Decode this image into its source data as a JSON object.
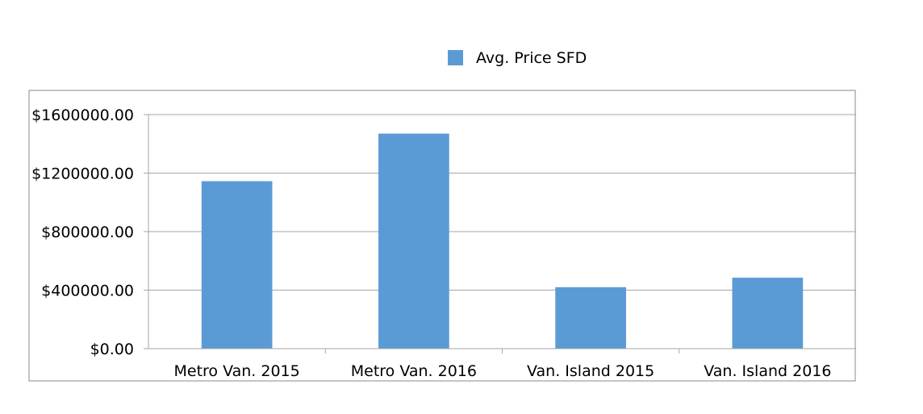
{
  "chart_data": {
    "type": "bar",
    "categories": [
      "Metro Van. 2015",
      "Metro Van. 2016",
      "Van. Island 2015",
      "Van. Island 2016"
    ],
    "series": [
      {
        "name": "Avg. Price SFD",
        "values": [
          1145000,
          1470000,
          420000,
          485000
        ],
        "color": "#5b9bd5"
      }
    ],
    "ylim": [
      0,
      1600000
    ],
    "yticks": [
      0,
      400000,
      800000,
      1200000,
      1600000
    ],
    "ytick_labels": [
      "$0.00",
      "$400000.00",
      "$800000.00",
      "$1200000.00",
      "$1600000.00"
    ],
    "legend_position": "top-center",
    "grid": true,
    "gridline_color": "#a6a6a6",
    "frame_color": "#888888"
  }
}
